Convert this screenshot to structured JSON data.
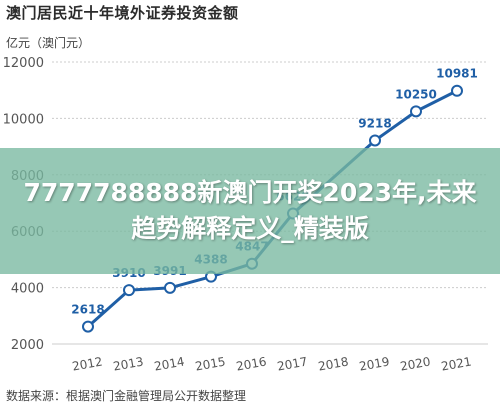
{
  "header": {
    "title": "澳门居民近十年境外证券投资金额",
    "unit_label": "亿元（澳门元）"
  },
  "footer": {
    "source": "数据来源：根据澳门金融管理局公开数据整理"
  },
  "overlay": {
    "text": "7777788888新澳门开奖2023年,未来趋势解释定义_精装版"
  },
  "colors": {
    "line": "#1f5fa6",
    "marker_fill": "#ffffff",
    "grid": "#cccccc",
    "label": "#1f5fa6"
  },
  "chart_data": {
    "type": "line",
    "x": [
      "2012",
      "2013",
      "2014",
      "2015",
      "2016",
      "2017",
      "2018",
      "2019",
      "2020",
      "2021"
    ],
    "series": [
      {
        "values": [
          2618,
          3910,
          3991,
          4388,
          4847,
          6629,
          null,
          9218,
          10250,
          10981
        ],
        "labels": [
          "2618",
          "3910",
          "3991",
          "4388",
          "4847",
          "6629",
          "",
          "9218",
          "10250",
          "10981"
        ]
      }
    ],
    "y_ticks": [
      2000,
      4000,
      6000,
      8000,
      10000,
      12000
    ],
    "ylim": [
      2000,
      12000
    ],
    "grid": true,
    "legend": "none"
  }
}
